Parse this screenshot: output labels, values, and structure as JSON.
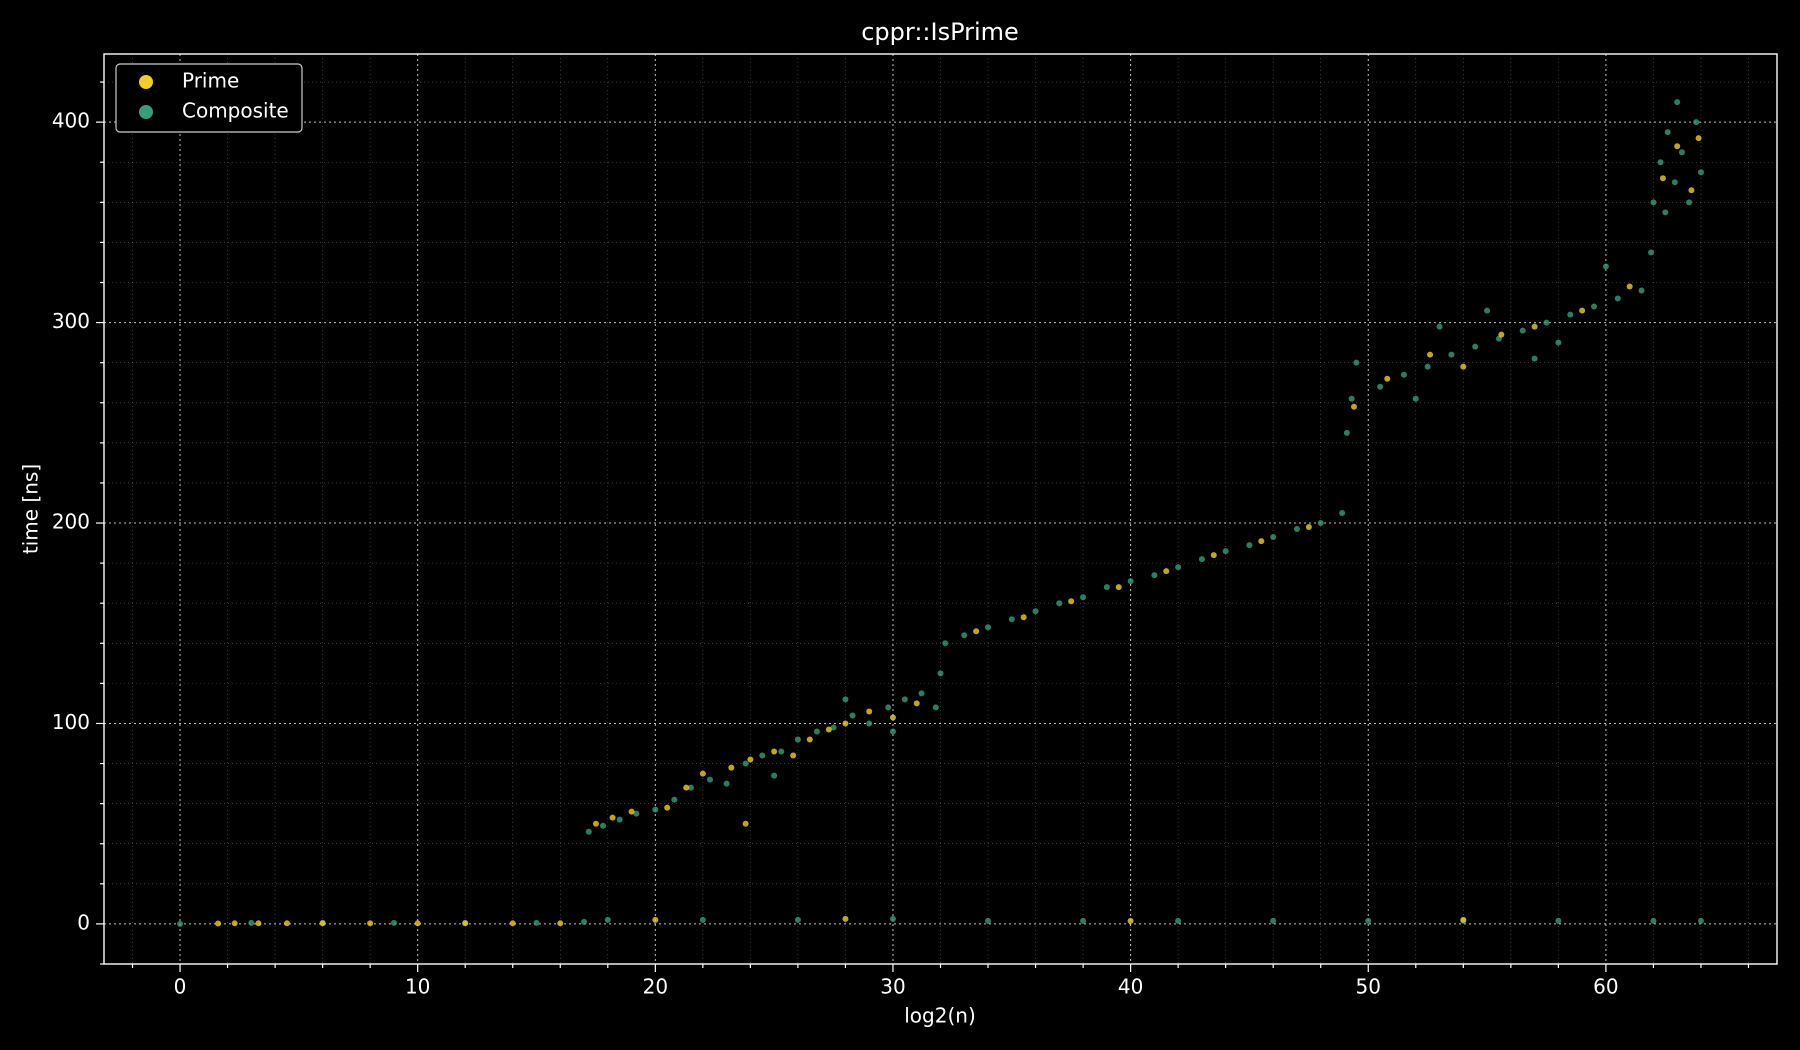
{
  "chart_data": {
    "type": "scatter",
    "title": "cppr::IsPrime",
    "x_label": "log2(n)",
    "y_label": "time [ns]",
    "xlim": [
      -3.2,
      67.2
    ],
    "ylim": [
      -20,
      434
    ],
    "xticks": [
      0,
      10,
      20,
      30,
      40,
      50,
      60
    ],
    "yticks": [
      0,
      100,
      200,
      300,
      400
    ],
    "xminorticks": [
      -2,
      2,
      4,
      6,
      8,
      12,
      14,
      16,
      18,
      22,
      24,
      26,
      28,
      32,
      34,
      36,
      38,
      42,
      44,
      46,
      48,
      52,
      54,
      56,
      58,
      62,
      64,
      66
    ],
    "yminorticks": [
      -20,
      20,
      40,
      60,
      80,
      120,
      140,
      160,
      180,
      220,
      240,
      260,
      280,
      320,
      340,
      360,
      380,
      420
    ],
    "grid": true,
    "legend": "upper-left",
    "series": [
      {
        "name": "Prime",
        "color": "#f2cc2f",
        "x": [
          1.6,
          2.3,
          3.3,
          4.5,
          6,
          8,
          10,
          12,
          14,
          16,
          20,
          28,
          40,
          54,
          17.5,
          18.2,
          19,
          20.5,
          21.3,
          22,
          23.2,
          24,
          25,
          25.8,
          26.5,
          27.3,
          28,
          29,
          30,
          31,
          23.8,
          33.5,
          35.5,
          37.5,
          39.5,
          41.5,
          43.5,
          45.5,
          47.5,
          49.4,
          50.8,
          52.6,
          54,
          55.6,
          57,
          59,
          61,
          62.4,
          63,
          63.6,
          63.9
        ],
        "y": [
          0.2,
          0.3,
          0.3,
          0.3,
          0.3,
          0.3,
          0.3,
          0.3,
          0.3,
          0.3,
          2,
          2.5,
          1.5,
          2,
          50,
          53,
          56,
          58,
          68,
          75,
          78,
          82,
          86,
          84,
          92,
          97,
          100,
          106,
          103,
          110,
          50,
          146,
          153,
          161,
          168,
          176,
          184,
          191,
          198,
          258,
          272,
          284,
          278,
          294,
          298,
          306,
          318,
          372,
          388,
          366,
          392
        ]
      },
      {
        "name": "Composite",
        "color": "#3a9c7a",
        "x": [
          0,
          3,
          6,
          9,
          12,
          15,
          17,
          18,
          22,
          26,
          30,
          34,
          38,
          42,
          46,
          50,
          54,
          58,
          62,
          64,
          17.2,
          17.8,
          18.5,
          19.2,
          20,
          20.8,
          21.5,
          22.3,
          23,
          23.8,
          24.5,
          25.3,
          26,
          26.8,
          27.5,
          28.3,
          29,
          29.8,
          30.5,
          31.2,
          31.8,
          32,
          25,
          28,
          30,
          32.2,
          33,
          34,
          35,
          36,
          37,
          38,
          39,
          40,
          41,
          42,
          43,
          44,
          45,
          46,
          47,
          48,
          48.9,
          49.1,
          49.3,
          49.5,
          50.5,
          51.5,
          52.5,
          53.5,
          54.5,
          55.5,
          56.5,
          57.5,
          58.5,
          59.5,
          60.5,
          61.5,
          61.9,
          52,
          55,
          58,
          60,
          53,
          57,
          62,
          62.3,
          62.6,
          62.9,
          63.2,
          63.5,
          63.8,
          64,
          63,
          62.5
        ],
        "y": [
          0,
          0.5,
          0.5,
          0.5,
          0.5,
          0.5,
          1,
          2,
          2,
          2,
          2.5,
          1.5,
          1.5,
          1.5,
          1.5,
          1.5,
          1.5,
          1.5,
          1.5,
          1.5,
          46,
          49,
          52,
          55,
          57,
          62,
          68,
          72,
          70,
          80,
          84,
          86,
          92,
          96,
          98,
          104,
          100,
          108,
          112,
          115,
          108,
          125,
          74,
          112,
          96,
          140,
          144,
          148,
          152,
          156,
          160,
          163,
          168,
          171,
          174,
          178,
          182,
          186,
          189,
          193,
          197,
          200,
          205,
          245,
          262,
          280,
          268,
          274,
          278,
          284,
          288,
          292,
          296,
          300,
          304,
          308,
          312,
          316,
          335,
          262,
          306,
          290,
          328,
          298,
          282,
          360,
          380,
          395,
          370,
          385,
          360,
          400,
          375,
          410,
          355
        ]
      }
    ]
  }
}
